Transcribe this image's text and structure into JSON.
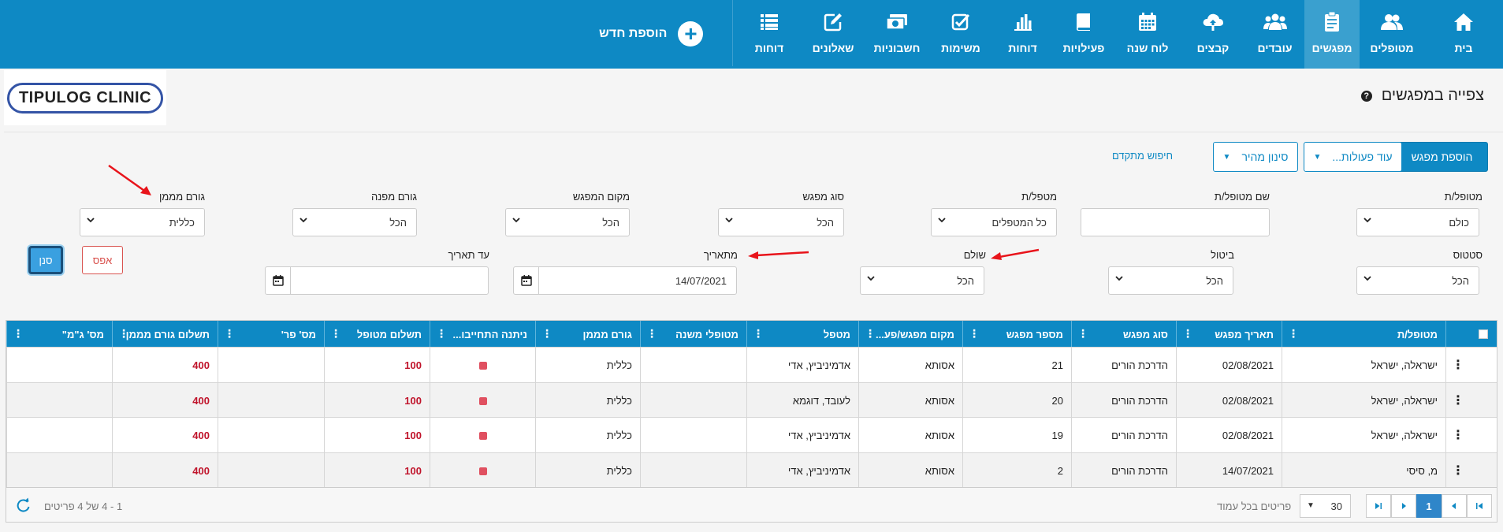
{
  "nav": {
    "items": [
      {
        "label": "בית",
        "icon": "home-icon"
      },
      {
        "label": "מטופלים",
        "icon": "patients-icon"
      },
      {
        "label": "מפגשים",
        "icon": "clipboard-icon",
        "active": true
      },
      {
        "label": "עובדים",
        "icon": "users-icon"
      },
      {
        "label": "קבצים",
        "icon": "cloud-upload-icon"
      },
      {
        "label": "לוח שנה",
        "icon": "calendar-icon"
      },
      {
        "label": "פעילויות",
        "icon": "book-icon"
      },
      {
        "label": "דוחות",
        "icon": "bar-chart-icon"
      },
      {
        "label": "משימות",
        "icon": "checkbox-icon"
      },
      {
        "label": "חשבוניות",
        "icon": "money-icon"
      },
      {
        "label": "שאלונים",
        "icon": "edit-icon"
      },
      {
        "label": "דוחות",
        "icon": "list-icon"
      }
    ],
    "add_new": "הוספת חדש"
  },
  "header": {
    "title": "צפייה במפגשים",
    "logo": "TIPULOG CLINIC"
  },
  "toolbar": {
    "add_meeting": "הוספת מפגש",
    "more_actions": "עוד פעולות...",
    "quick_filter": "סינון מהיר",
    "advanced_search": "חיפוש מתקדם"
  },
  "filters": {
    "patient_label": "מטופל/ת",
    "patient_value": "כולם",
    "patient_name_label": "שם מטופל/ת",
    "therapist_label": "מטפל/ת",
    "therapist_value": "כל המטפלים",
    "meeting_type_label": "סוג מפגש",
    "meeting_type_value": "הכל",
    "meeting_place_label": "מקום המפגש",
    "meeting_place_value": "הכל",
    "referrer_label": "גורם מפנה",
    "referrer_value": "הכל",
    "funder_label": "גורם מממן",
    "funder_value": "כללית",
    "status_label": "סטטוס",
    "status_value": "הכל",
    "cancel_label": "ביטול",
    "cancel_value": "הכל",
    "paid_label": "שולם",
    "paid_value": "הכל",
    "from_date_label": "מתאריך",
    "from_date_value": "14/07/2021",
    "to_date_label": "עד תאריך",
    "to_date_value": "",
    "reset": "אפס",
    "apply": "סנן"
  },
  "table": {
    "columns": [
      "מטופל/ת",
      "תאריך מפגש",
      "סוג מפגש",
      "מספר מפגש",
      "מקום מפגש/פע...",
      "מטפל",
      "מטופלי משנה",
      "גורם מממן",
      "ניתנה התחייבו...",
      "תשלום מטופל",
      "מס' פר'",
      "תשלום גורם מממן",
      "מס' ג\"מ\""
    ],
    "rows": [
      {
        "patient": "ישראלה, ישראל",
        "date": "02/08/2021",
        "type": "הדרכת הורים",
        "num": "21",
        "place": "אסותא",
        "therapist": "אדמיניביץ, אדי",
        "sub": "",
        "funder": "כללית",
        "commit": true,
        "pay_patient": "100",
        "pr": "",
        "pay_funder": "400",
        "gm": ""
      },
      {
        "patient": "ישראלה, ישראל",
        "date": "02/08/2021",
        "type": "הדרכת הורים",
        "num": "20",
        "place": "אסותא",
        "therapist": "לעובד, דוגמא",
        "sub": "",
        "funder": "כללית",
        "commit": true,
        "pay_patient": "100",
        "pr": "",
        "pay_funder": "400",
        "gm": ""
      },
      {
        "patient": "ישראלה, ישראל",
        "date": "02/08/2021",
        "type": "הדרכת הורים",
        "num": "19",
        "place": "אסותא",
        "therapist": "אדמיניביץ, אדי",
        "sub": "",
        "funder": "כללית",
        "commit": true,
        "pay_patient": "100",
        "pr": "",
        "pay_funder": "400",
        "gm": ""
      },
      {
        "patient": "מ, סיסי",
        "date": "14/07/2021",
        "type": "הדרכת הורים",
        "num": "2",
        "place": "אסותא",
        "therapist": "אדמיניביץ, אדי",
        "sub": "",
        "funder": "כללית",
        "commit": true,
        "pay_patient": "100",
        "pr": "",
        "pay_funder": "400",
        "gm": ""
      }
    ]
  },
  "pager": {
    "current_page": "1",
    "per_page": "30",
    "per_page_label": "פריטים בכל עמוד",
    "summary": "1 - 4 של 4 פריטים"
  },
  "colors": {
    "primary": "#0e89c4",
    "active_nav": "#3aa0cf",
    "amount_red": "#c0142b",
    "arrow_red": "#e8141b"
  }
}
